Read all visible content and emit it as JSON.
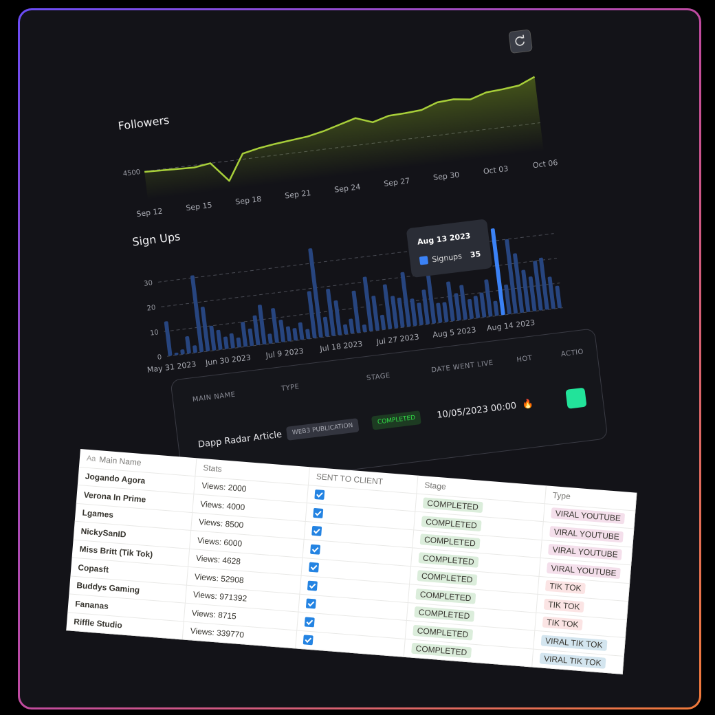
{
  "chart_data": [
    {
      "type": "line",
      "title": "Followers",
      "categories": [
        "Sep 12",
        null,
        null,
        "Sep 15",
        null,
        null,
        "Sep 18",
        null,
        null,
        "Sep 21",
        null,
        null,
        "Sep 24",
        null,
        null,
        "Sep 27",
        null,
        null,
        "Sep 30",
        null,
        null,
        "Oct 03",
        null,
        null,
        "Oct 06"
      ],
      "values": [
        4490,
        4480,
        4470,
        4460,
        4500,
        4150,
        4600,
        4660,
        4700,
        4730,
        4760,
        4820,
        4900,
        4980,
        4870,
        4950,
        4960,
        4980,
        5080,
        5100,
        5060,
        5150,
        5170,
        5200,
        5320
      ],
      "color": "#a8cf3a",
      "ylim": [
        4000,
        5400
      ],
      "yticks": [
        4500
      ],
      "grid": true
    },
    {
      "type": "bar",
      "title": "Sign Ups",
      "categories": [
        "May 31 2023",
        null,
        null,
        null,
        null,
        null,
        null,
        null,
        null,
        "Jun 30 2023",
        null,
        null,
        null,
        null,
        null,
        null,
        null,
        null,
        "Jul 9 2023",
        null,
        null,
        null,
        null,
        null,
        null,
        null,
        null,
        "Jul 18 2023",
        null,
        null,
        null,
        null,
        null,
        null,
        null,
        null,
        "Jul 27 2023",
        null,
        null,
        null,
        null,
        null,
        null,
        null,
        null,
        "Aug 5 2023",
        null,
        null,
        null,
        null,
        null,
        null,
        null,
        null,
        "Aug 14 2023",
        null,
        null,
        null,
        null,
        null,
        null,
        null,
        null
      ],
      "series": [
        {
          "name": "Signups",
          "color": "#27457f",
          "values": [
            14,
            1,
            2,
            7,
            3,
            31,
            18,
            10,
            8,
            5,
            6,
            4,
            10,
            7,
            12,
            16,
            4,
            14,
            9,
            6,
            5,
            7,
            4,
            19,
            36,
            8,
            19,
            14,
            4,
            6,
            17,
            3,
            22,
            14,
            6,
            18,
            13,
            12,
            22,
            11,
            9,
            14,
            24,
            8,
            8,
            16,
            11,
            14,
            8,
            9,
            10,
            15,
            6,
            35,
            12,
            30,
            24,
            17,
            14,
            20,
            21,
            13,
            9
          ]
        }
      ],
      "highlight_color": "#3b82f6",
      "tooltip": {
        "date": "Aug 13 2023",
        "value": 35
      },
      "ylim": [
        0,
        40
      ],
      "yticks": [
        0,
        10,
        20,
        30
      ],
      "grid": true
    }
  ],
  "dark_table": {
    "columns": [
      "MAIN NAME",
      "TYPE",
      "STAGE",
      "DATE WENT LIVE",
      "HOT",
      "ACTIO"
    ],
    "rows": [
      [
        "Dapp Radar Article",
        "WEB3 PUBLICATION",
        "COMPLETED",
        "10/05/2023 00:00",
        "🔥"
      ]
    ]
  },
  "notion_table": {
    "name_icon": "Aa",
    "columns": [
      "Main Name",
      "Stats",
      "SENT TO CLIENT",
      "Stage",
      "Type"
    ],
    "rows": [
      {
        "name": "Jogando Agora",
        "stats": "Views: 2000",
        "sent": true,
        "stage": "COMPLETED",
        "type": "VIRAL YOUTUBE",
        "type_color": "#f4dfeb"
      },
      {
        "name": "Verona In Prime",
        "stats": "Views: 4000",
        "sent": true,
        "stage": "COMPLETED",
        "type": "VIRAL YOUTUBE",
        "type_color": "#f4dfeb"
      },
      {
        "name": "Lgames",
        "stats": "Views: 8500",
        "sent": true,
        "stage": "COMPLETED",
        "type": "VIRAL YOUTUBE",
        "type_color": "#f4dfeb"
      },
      {
        "name": "NickySanID",
        "stats": "Views: 6000",
        "sent": true,
        "stage": "COMPLETED",
        "type": "VIRAL YOUTUBE",
        "type_color": "#f4dfeb"
      },
      {
        "name": "Miss Britt (Tik Tok)",
        "stats": "Views: 4628",
        "sent": true,
        "stage": "COMPLETED",
        "type": "TIK TOK",
        "type_color": "#fbe4e4"
      },
      {
        "name": "Copasft",
        "stats": "Views: 52908",
        "sent": true,
        "stage": "COMPLETED",
        "type": "TIK TOK",
        "type_color": "#fbe4e4"
      },
      {
        "name": "Buddys Gaming",
        "stats": "Views: 971392",
        "sent": true,
        "stage": "COMPLETED",
        "type": "TIK TOK",
        "type_color": "#fbe4e4"
      },
      {
        "name": "Fananas",
        "stats": "Views: 8715",
        "sent": true,
        "stage": "COMPLETED",
        "type": "VIRAL TIK TOK",
        "type_color": "#d3e5ef"
      },
      {
        "name": "Riffle Studio",
        "stats": "Views: 339770",
        "sent": true,
        "stage": "COMPLETED",
        "type": "VIRAL TIK TOK",
        "type_color": "#d3e5ef"
      }
    ]
  }
}
